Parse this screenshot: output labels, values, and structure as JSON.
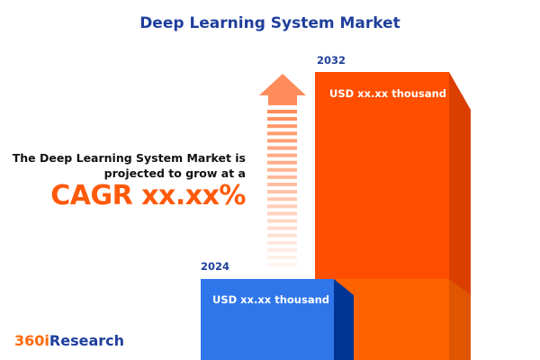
{
  "title": "Deep Learning System Market",
  "description_line1": "The Deep Learning  System Market is",
  "description_line2": "projected to grow at a",
  "cagr_label": "CAGR xx.xx%",
  "logo": {
    "prefix": "360i",
    "suffix": "Research"
  },
  "colors": {
    "title": "#1f3f9c",
    "accent": "#ff5a0a",
    "bar_2024": "#2f76ea",
    "bar_2032": "#ff4e00"
  },
  "chart_data": {
    "type": "bar",
    "categories": [
      "2024",
      "2032"
    ],
    "value_labels": [
      "USD xx.xx thousand",
      "USD xx.xx thousand"
    ],
    "title": "Deep Learning System Market",
    "annotation": "CAGR xx.xx%"
  }
}
